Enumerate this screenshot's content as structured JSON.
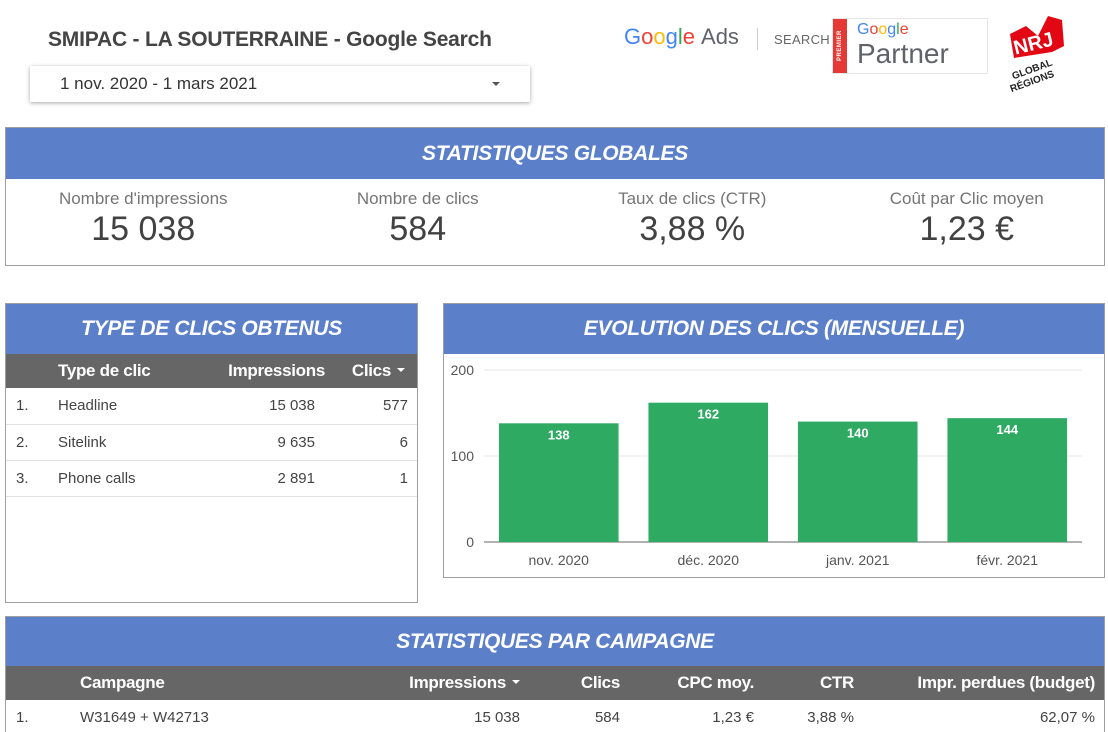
{
  "report": {
    "title": "SMIPAC - LA SOUTERRAINE - Google Search",
    "date_range": "1 nov. 2020 - 1 mars 2021"
  },
  "logos": {
    "google_ads": "Google Ads",
    "search": "SEARCH",
    "partner_google": "Google",
    "partner_word": "Partner",
    "premier": "PREMIER",
    "nrj": "NRJ",
    "nrj_sub": "GLOBAL RÉGIONS"
  },
  "colors": {
    "header_blue": "#5b7fc9",
    "table_head_gray": "#666666",
    "bar_green": "#2eaa62"
  },
  "kpis": {
    "title": "STATISTIQUES GLOBALES",
    "items": [
      {
        "label": "Nombre d'impressions",
        "value": "15 038"
      },
      {
        "label": "Nombre de clics",
        "value": "584"
      },
      {
        "label": "Taux de clics (CTR)",
        "value": "3,88 %"
      },
      {
        "label": "Coût par Clic moyen",
        "value": "1,23 €"
      }
    ]
  },
  "click_types": {
    "title": "TYPE DE CLICS OBTENUS",
    "columns": [
      "Type de clic",
      "Impressions",
      "Clics"
    ],
    "rows": [
      {
        "idx": "1.",
        "type": "Headline",
        "impressions": "15 038",
        "clics": "577"
      },
      {
        "idx": "2.",
        "type": "Sitelink",
        "impressions": "9 635",
        "clics": "6"
      },
      {
        "idx": "3.",
        "type": "Phone calls",
        "impressions": "2 891",
        "clics": "1"
      }
    ]
  },
  "evolution": {
    "title": "EVOLUTION DES CLICS (MENSUELLE)"
  },
  "chart_data": {
    "type": "bar",
    "title": "EVOLUTION DES CLICS (MENSUELLE)",
    "categories": [
      "nov. 2020",
      "déc. 2020",
      "janv. 2021",
      "févr. 2021"
    ],
    "values": [
      138,
      162,
      140,
      144
    ],
    "yticks": [
      0,
      100,
      200
    ],
    "ylim": [
      0,
      200
    ],
    "grid": true,
    "color": "#2eaa62"
  },
  "campaigns": {
    "title": "STATISTIQUES PAR CAMPAGNE",
    "columns": [
      "Campagne",
      "Impressions",
      "Clics",
      "CPC moy.",
      "CTR",
      "Impr. perdues (budget)"
    ],
    "rows": [
      {
        "idx": "1.",
        "name": "W31649 + W42713",
        "impressions": "15 038",
        "clics": "584",
        "cpc": "1,23 €",
        "ctr": "3,88 %",
        "lost": "62,07 %"
      }
    ]
  }
}
